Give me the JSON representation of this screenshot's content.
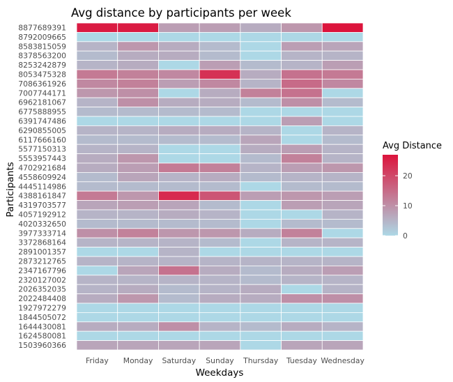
{
  "chart_data": {
    "type": "heatmap",
    "title": "Avg distance by participants per week",
    "xlabel": "Weekdays",
    "ylabel": "Participants",
    "x": [
      "Friday",
      "Monday",
      "Saturday",
      "Sunday",
      "Thursday",
      "Tuesday",
      "Wednesday"
    ],
    "y": [
      "8877689391",
      "8792009665",
      "8583815059",
      "8378563200",
      "8253242879",
      "8053475328",
      "7086361926",
      "7007744171",
      "6962181067",
      "6775888955",
      "6391747486",
      "6290855005",
      "6117666160",
      "5577150313",
      "5553957443",
      "4702921684",
      "4558609924",
      "4445114986",
      "4388161847",
      "4319703577",
      "4057192912",
      "4020332650",
      "3977333714",
      "3372868164",
      "2891001357",
      "2873212765",
      "2347167796",
      "2320127002",
      "2026352035",
      "2022484408",
      "1927972279",
      "1844505072",
      "1644430081",
      "1624580081",
      "1503960366"
    ],
    "values": [
      [
        26,
        26,
        8,
        8,
        6,
        9,
        27
      ],
      [
        0,
        0,
        0,
        0,
        0,
        0,
        0
      ],
      [
        5,
        9,
        6,
        4,
        0,
        8,
        7
      ],
      [
        4,
        6,
        6,
        4,
        0,
        5,
        5
      ],
      [
        5,
        6,
        0,
        8,
        4,
        5,
        8
      ],
      [
        13,
        12,
        11,
        23,
        6,
        14,
        13
      ],
      [
        11,
        12,
        8,
        11,
        5,
        15,
        11
      ],
      [
        9,
        10,
        0,
        6,
        12,
        14,
        0
      ],
      [
        5,
        10,
        6,
        6,
        4,
        10,
        4
      ],
      [
        4,
        4,
        4,
        4,
        0,
        0,
        0
      ],
      [
        0,
        0,
        0,
        0,
        0,
        8,
        0
      ],
      [
        5,
        5,
        6,
        6,
        5,
        0,
        5
      ],
      [
        4,
        4,
        4,
        4,
        7,
        0,
        4
      ],
      [
        5,
        5,
        0,
        0,
        6,
        8,
        5
      ],
      [
        6,
        9,
        0,
        0,
        4,
        12,
        5
      ],
      [
        6,
        8,
        13,
        12,
        5,
        8,
        9
      ],
      [
        4,
        7,
        5,
        6,
        4,
        5,
        5
      ],
      [
        4,
        4,
        4,
        4,
        0,
        4,
        4
      ],
      [
        13,
        9,
        24,
        18,
        8,
        9,
        8
      ],
      [
        7,
        8,
        7,
        4,
        0,
        8,
        7
      ],
      [
        5,
        5,
        6,
        5,
        0,
        0,
        5
      ],
      [
        4,
        4,
        4,
        4,
        0,
        4,
        4
      ],
      [
        10,
        12,
        9,
        9,
        6,
        12,
        0
      ],
      [
        5,
        5,
        5,
        4,
        0,
        5,
        5
      ],
      [
        0,
        0,
        5,
        0,
        0,
        0,
        0
      ],
      [
        5,
        5,
        5,
        5,
        5,
        5,
        5
      ],
      [
        0,
        7,
        14,
        6,
        4,
        6,
        8
      ],
      [
        5,
        5,
        5,
        5,
        4,
        5,
        5
      ],
      [
        5,
        6,
        4,
        5,
        6,
        0,
        5
      ],
      [
        6,
        9,
        4,
        6,
        6,
        10,
        10
      ],
      [
        0,
        0,
        0,
        0,
        0,
        0,
        0
      ],
      [
        0,
        0,
        0,
        0,
        0,
        0,
        0
      ],
      [
        6,
        6,
        10,
        5,
        4,
        6,
        5
      ],
      [
        0,
        0,
        0,
        0,
        0,
        0,
        0
      ],
      [
        7,
        7,
        7,
        7,
        0,
        7,
        7
      ]
    ],
    "color_scale": {
      "low": "#add8e6",
      "high": "#dc143c",
      "range": [
        0,
        27
      ]
    },
    "legend": {
      "title": "Avg Distance",
      "ticks": [
        "0",
        "10",
        "20"
      ],
      "position": "right"
    },
    "grid": false
  }
}
